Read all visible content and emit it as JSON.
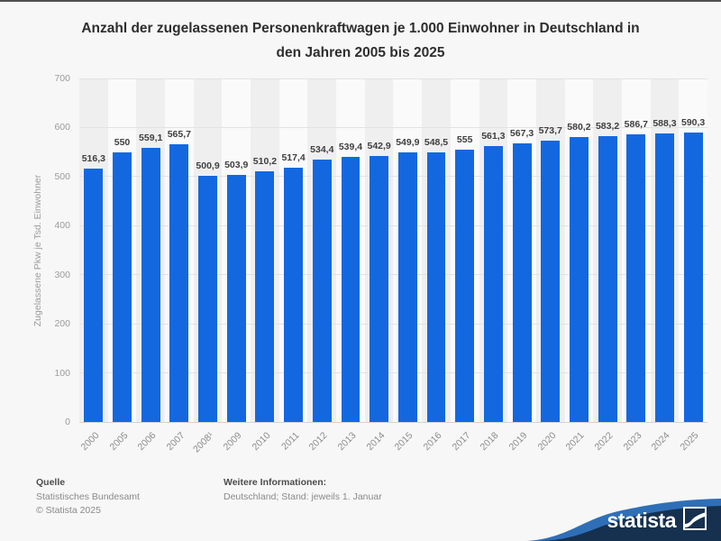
{
  "title": "Anzahl der zugelassenen Personenkraftwagen je 1.000 Einwohner in Deutschland in den Jahren 2005 bis 2025",
  "chart_data": {
    "type": "bar",
    "categories": [
      "2000",
      "2005",
      "2006",
      "2007",
      "2008¹",
      "2009",
      "2010",
      "2011",
      "2012",
      "2013",
      "2014",
      "2015",
      "2016",
      "2017",
      "2018",
      "2019",
      "2020",
      "2021",
      "2022",
      "2023",
      "2024",
      "2025"
    ],
    "values": [
      516.3,
      550,
      559.1,
      565.7,
      500.9,
      503.9,
      510.2,
      517.4,
      534.4,
      539.4,
      542.9,
      549.9,
      548.5,
      555,
      561.3,
      567.3,
      573.7,
      580.2,
      583.2,
      586.7,
      588.3,
      590.3
    ],
    "value_labels": [
      "516,3",
      "550",
      "559,1",
      "565,7",
      "500,9",
      "503,9",
      "510,2",
      "517,4",
      "534,4",
      "539,4",
      "542,9",
      "549,9",
      "548,5",
      "555",
      "561,3",
      "567,3",
      "573,7",
      "580,2",
      "583,2",
      "586,7",
      "588,3",
      "590,3"
    ],
    "title": "Anzahl der zugelassenen Personenkraftwagen je 1.000 Einwohner in Deutschland in den Jahren 2005 bis 2025",
    "xlabel": "",
    "ylabel": "Zugelassene Pkw je Tsd. Einwohner",
    "ylim": [
      0,
      700
    ],
    "yticks": [
      0,
      100,
      200,
      300,
      400,
      500,
      600,
      700
    ],
    "grid": true,
    "legend": false
  },
  "footer": {
    "source_label": "Quelle",
    "source": "Statistisches Bundesamt",
    "copyright": "© Statista 2025",
    "info_label": "Weitere Informationen:",
    "info": "Deutschland; Stand: jeweils 1. Januar"
  },
  "branding": {
    "logo_text": "statista"
  },
  "colors": {
    "bar": "#1368e0",
    "navy": "#16304f",
    "swoosh": "#2f6fb7"
  }
}
